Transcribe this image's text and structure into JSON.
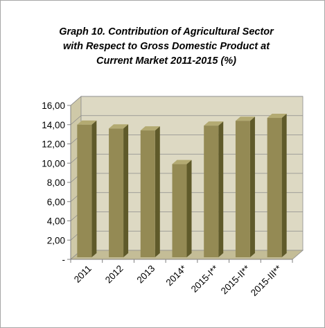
{
  "chart_data": {
    "type": "bar",
    "title_lines": [
      "Graph 10. Contribution of Agricultural Sector",
      "with Respect to Gross Domestic Product at",
      "Current Market 2011-2015 (%)"
    ],
    "categories": [
      "2011",
      "2012",
      "2013",
      "2014*",
      "2015-I**",
      "2015-II**",
      "2015-III**"
    ],
    "values": [
      14.0,
      13.6,
      13.4,
      9.9,
      13.9,
      14.4,
      14.7
    ],
    "ylim": [
      0,
      16
    ],
    "yticks": [
      0,
      2,
      4,
      6,
      8,
      10,
      12,
      14,
      16
    ],
    "ytick_labels": [
      "-",
      "2,00",
      "4,00",
      "6,00",
      "8,00",
      "10,00",
      "12,00",
      "14,00",
      "16,00"
    ],
    "grid": true,
    "legend": "none",
    "style": "3d",
    "colors": {
      "bar_front": "#948a54",
      "bar_side": "#5f5a2a",
      "bar_top": "#b3aa72",
      "plot_back": "#ddd9c3",
      "plot_floor": "#c4bd97",
      "plot_side": "#cfc9a8",
      "gridline": "#8c8c8c"
    }
  }
}
